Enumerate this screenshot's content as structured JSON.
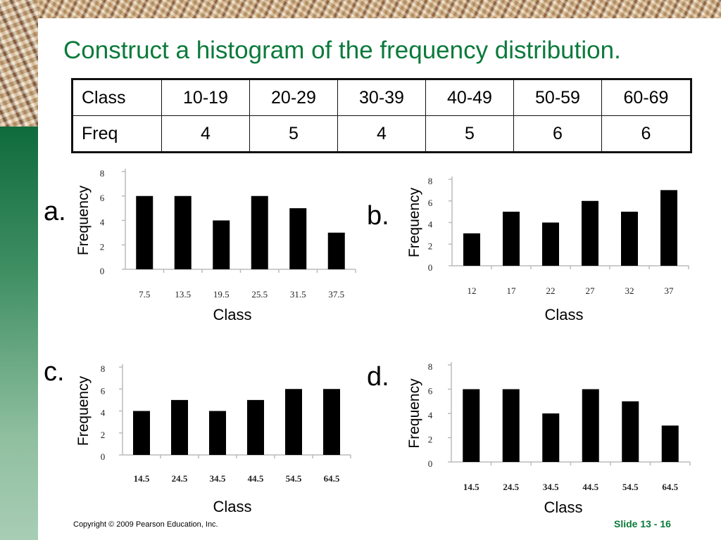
{
  "slide": {
    "title": "Construct a histogram of the frequency distribution.",
    "copyright": "Copyright © 2009 Pearson Education, Inc.",
    "slide_number": "Slide 13 - 16"
  },
  "table": {
    "class_header": "Class",
    "freq_header": "Freq",
    "classes": [
      "10-19",
      "20-29",
      "30-39",
      "40-49",
      "50-59",
      "60-69"
    ],
    "freqs": [
      "4",
      "5",
      "4",
      "5",
      "6",
      "6"
    ]
  },
  "chart_data": [
    {
      "option": "a.",
      "type": "bar",
      "categories": [
        "7.5",
        "13.5",
        "19.5",
        "25.5",
        "31.5",
        "37.5"
      ],
      "values": [
        6,
        6,
        4,
        6,
        5,
        3
      ],
      "xlabel": "Class",
      "ylabel": "Frequency",
      "ylim": [
        0,
        8
      ],
      "yticks": [
        "0",
        "2",
        "4",
        "6",
        "8"
      ]
    },
    {
      "option": "b.",
      "type": "bar",
      "categories": [
        "12",
        "17",
        "22",
        "27",
        "32",
        "37"
      ],
      "values": [
        3,
        5,
        4,
        6,
        5,
        7
      ],
      "xlabel": "Class",
      "ylabel": "Frequency",
      "ylim": [
        0,
        8
      ],
      "yticks": [
        "0",
        "2",
        "4",
        "6",
        "8"
      ]
    },
    {
      "option": "c.",
      "type": "bar",
      "categories": [
        "14.5",
        "24.5",
        "34.5",
        "44.5",
        "54.5",
        "64.5"
      ],
      "values": [
        4,
        5,
        4,
        5,
        6,
        6
      ],
      "xlabel": "Class",
      "ylabel": "Frequency",
      "ylim": [
        0,
        8
      ],
      "yticks": [
        "0",
        "2",
        "4",
        "6",
        "8"
      ]
    },
    {
      "option": "d.",
      "type": "bar",
      "categories": [
        "14.5",
        "24.5",
        "34.5",
        "44.5",
        "54.5",
        "64.5"
      ],
      "values": [
        6,
        6,
        4,
        6,
        5,
        3
      ],
      "xlabel": "Class",
      "ylabel": "Frequency",
      "ylim": [
        0,
        8
      ],
      "yticks": [
        "0",
        "2",
        "4",
        "6",
        "8"
      ]
    }
  ]
}
